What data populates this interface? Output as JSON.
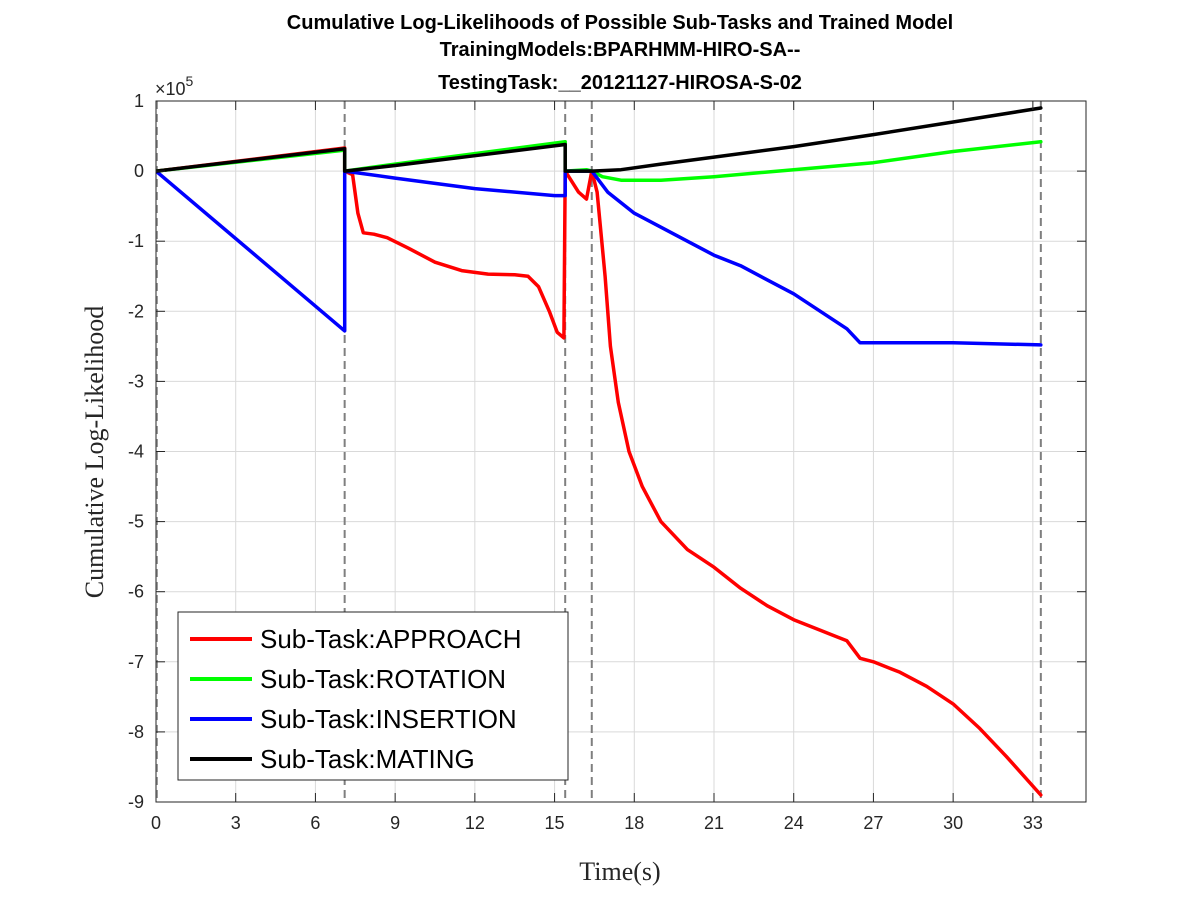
{
  "chart_data": {
    "type": "line",
    "title_lines": [
      "Cumulative Log-Likelihoods of Possible Sub-Tasks and Trained Model",
      "TrainingModels:BPARHMM-HIRO-SA--",
      "TestingTask:__20121127-HIROSA-S-02"
    ],
    "xlabel": "Time(s)",
    "ylabel": "Cumulative Log-Likelihood",
    "y_multiplier_base": "×10",
    "y_multiplier_exp": "5",
    "xlim": [
      0,
      35
    ],
    "ylim": [
      -9,
      1
    ],
    "x_ticks": [
      0,
      3,
      6,
      9,
      12,
      15,
      18,
      21,
      24,
      27,
      30,
      33
    ],
    "y_ticks": [
      1,
      0,
      -1,
      -2,
      -3,
      -4,
      -5,
      -6,
      -7,
      -8,
      -9
    ],
    "grid": true,
    "legend_position": "bottom-left",
    "vertical_markers": [
      7.1,
      15.4,
      16.4,
      33.3
    ],
    "series": [
      {
        "name": "Sub-Task:APPROACH",
        "color": "#ff0000",
        "points": [
          [
            0,
            0
          ],
          [
            7.1,
            0.33
          ],
          [
            7.1,
            0
          ],
          [
            7.4,
            -0.05
          ],
          [
            7.6,
            -0.6
          ],
          [
            7.8,
            -0.88
          ],
          [
            8.2,
            -0.9
          ],
          [
            8.7,
            -0.95
          ],
          [
            9.5,
            -1.1
          ],
          [
            10.5,
            -1.3
          ],
          [
            11.5,
            -1.42
          ],
          [
            12.5,
            -1.47
          ],
          [
            13.5,
            -1.48
          ],
          [
            14.0,
            -1.5
          ],
          [
            14.4,
            -1.65
          ],
          [
            14.8,
            -2.0
          ],
          [
            15.1,
            -2.3
          ],
          [
            15.35,
            -2.38
          ],
          [
            15.4,
            0
          ],
          [
            15.9,
            -0.3
          ],
          [
            16.2,
            -0.4
          ],
          [
            16.4,
            0
          ],
          [
            16.6,
            -0.3
          ],
          [
            16.9,
            -1.5
          ],
          [
            17.1,
            -2.5
          ],
          [
            17.4,
            -3.3
          ],
          [
            17.8,
            -4.0
          ],
          [
            18.3,
            -4.5
          ],
          [
            19.0,
            -5.0
          ],
          [
            20.0,
            -5.4
          ],
          [
            21.0,
            -5.65
          ],
          [
            22.0,
            -5.95
          ],
          [
            23.0,
            -6.2
          ],
          [
            24.0,
            -6.4
          ],
          [
            25.0,
            -6.55
          ],
          [
            26.0,
            -6.7
          ],
          [
            26.5,
            -6.95
          ],
          [
            27.0,
            -7.0
          ],
          [
            28.0,
            -7.15
          ],
          [
            29.0,
            -7.35
          ],
          [
            30.0,
            -7.6
          ],
          [
            31.0,
            -7.95
          ],
          [
            32.0,
            -8.35
          ],
          [
            33.3,
            -8.9
          ]
        ]
      },
      {
        "name": "Sub-Task:ROTATION",
        "color": "#00ff00",
        "points": [
          [
            0,
            0
          ],
          [
            7.1,
            0.3
          ],
          [
            7.1,
            0
          ],
          [
            9,
            0.1
          ],
          [
            12,
            0.25
          ],
          [
            15.4,
            0.42
          ],
          [
            15.4,
            0
          ],
          [
            16.2,
            0.02
          ],
          [
            16.4,
            0
          ],
          [
            16.8,
            -0.08
          ],
          [
            17.5,
            -0.13
          ],
          [
            19,
            -0.13
          ],
          [
            21,
            -0.08
          ],
          [
            24,
            0.02
          ],
          [
            27,
            0.12
          ],
          [
            30,
            0.28
          ],
          [
            33.3,
            0.42
          ]
        ]
      },
      {
        "name": "Sub-Task:INSERTION",
        "color": "#0000ff",
        "points": [
          [
            0,
            0
          ],
          [
            7.1,
            -2.28
          ],
          [
            7.1,
            0
          ],
          [
            9,
            -0.1
          ],
          [
            12,
            -0.25
          ],
          [
            15,
            -0.35
          ],
          [
            15.4,
            -0.35
          ],
          [
            15.4,
            0
          ],
          [
            16.2,
            0
          ],
          [
            16.4,
            0
          ],
          [
            17.0,
            -0.3
          ],
          [
            18.0,
            -0.6
          ],
          [
            19.0,
            -0.8
          ],
          [
            20.0,
            -1.0
          ],
          [
            21.0,
            -1.2
          ],
          [
            22.0,
            -1.35
          ],
          [
            23.0,
            -1.55
          ],
          [
            24.0,
            -1.75
          ],
          [
            25.0,
            -2.0
          ],
          [
            26.0,
            -2.25
          ],
          [
            26.5,
            -2.45
          ],
          [
            28,
            -2.45
          ],
          [
            30,
            -2.45
          ],
          [
            33.3,
            -2.48
          ]
        ]
      },
      {
        "name": "Sub-Task:MATING",
        "color": "#000000",
        "points": [
          [
            0,
            0
          ],
          [
            7.1,
            0.32
          ],
          [
            7.1,
            0
          ],
          [
            9,
            0.08
          ],
          [
            12,
            0.22
          ],
          [
            15.4,
            0.38
          ],
          [
            15.4,
            0
          ],
          [
            16.2,
            0
          ],
          [
            16.4,
            0
          ],
          [
            17.5,
            0.02
          ],
          [
            19,
            0.1
          ],
          [
            21,
            0.2
          ],
          [
            24,
            0.35
          ],
          [
            27,
            0.52
          ],
          [
            30,
            0.7
          ],
          [
            33.3,
            0.9
          ]
        ]
      }
    ]
  }
}
